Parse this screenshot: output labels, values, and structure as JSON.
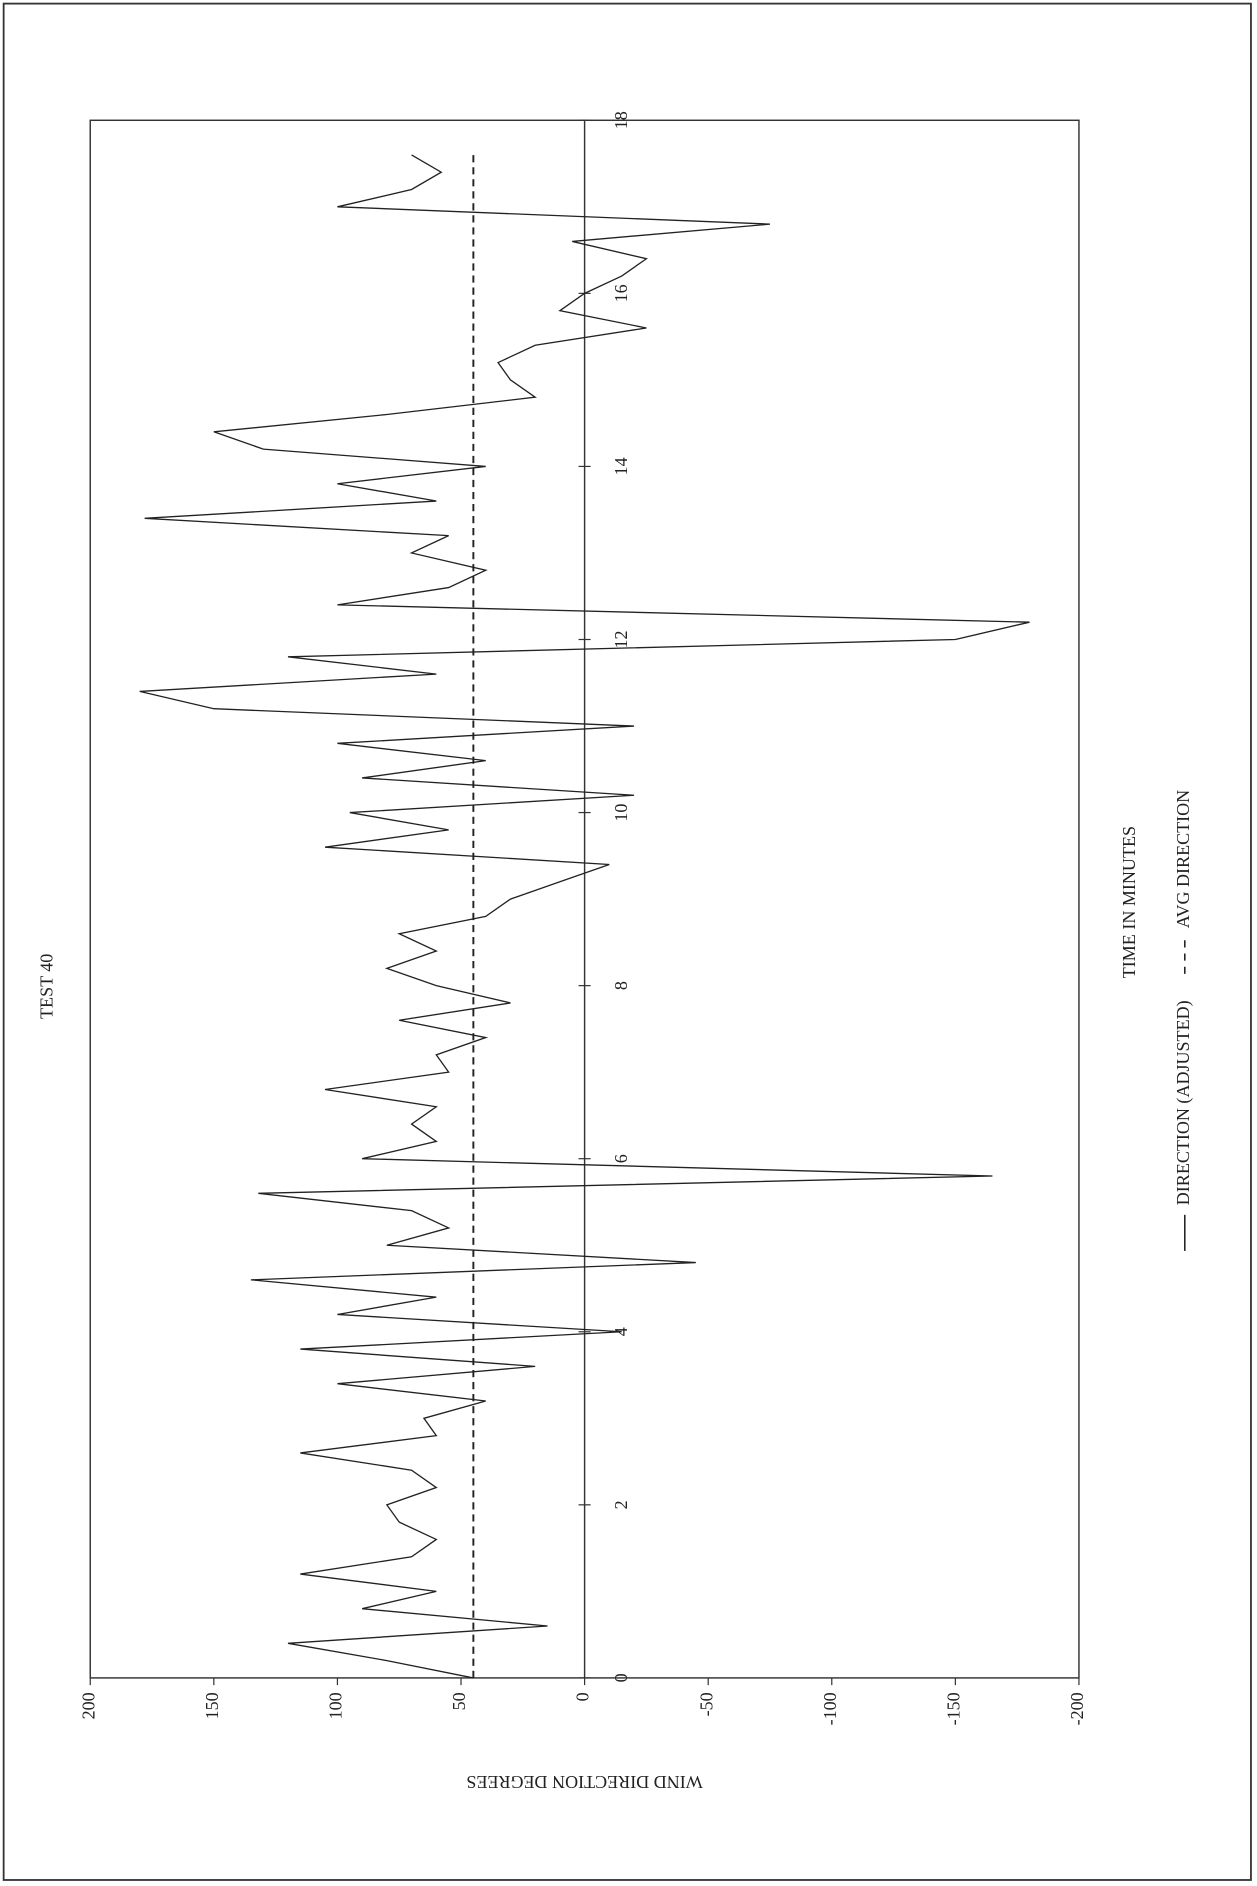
{
  "chart_data": {
    "type": "line",
    "title": "TEST 40",
    "xlabel": "TIME IN MINUTES",
    "ylabel": "WIND DIRECTION DEGREES",
    "xlim": [
      0,
      18
    ],
    "ylim": [
      -200,
      200
    ],
    "xticks": [
      0,
      2,
      4,
      6,
      8,
      10,
      12,
      14,
      16,
      18
    ],
    "yticks": [
      200,
      150,
      100,
      50,
      0,
      -50,
      -100,
      -150,
      -200
    ],
    "series": [
      {
        "name": "DIRECTION (ADJUSTED)",
        "color": "#222222",
        "style": "solid",
        "x": [
          0,
          0.2,
          0.4,
          0.6,
          0.8,
          1.0,
          1.2,
          1.4,
          1.6,
          1.8,
          2.0,
          2.2,
          2.4,
          2.6,
          2.8,
          3.0,
          3.2,
          3.4,
          3.6,
          3.8,
          4.0,
          4.2,
          4.4,
          4.6,
          4.8,
          5.0,
          5.2,
          5.4,
          5.6,
          5.8,
          6.0,
          6.2,
          6.4,
          6.6,
          6.8,
          7.0,
          7.2,
          7.4,
          7.6,
          7.8,
          8.0,
          8.2,
          8.4,
          8.6,
          8.8,
          9.0,
          9.2,
          9.4,
          9.6,
          9.8,
          10.0,
          10.2,
          10.4,
          10.6,
          10.8,
          11.0,
          11.2,
          11.4,
          11.6,
          11.8,
          12.0,
          12.2,
          12.4,
          12.6,
          12.8,
          13.0,
          13.2,
          13.4,
          13.6,
          13.8,
          14.0,
          14.2,
          14.4,
          14.6,
          14.8,
          15.0,
          15.2,
          15.4,
          15.6,
          15.8,
          16.0,
          16.2,
          16.4,
          16.6,
          16.8,
          17.0,
          17.2,
          17.4,
          17.6
        ],
        "values": [
          45,
          80,
          120,
          15,
          90,
          60,
          115,
          70,
          60,
          75,
          80,
          60,
          70,
          115,
          60,
          65,
          40,
          100,
          20,
          115,
          -15,
          100,
          60,
          135,
          -45,
          80,
          55,
          70,
          132,
          -165,
          90,
          60,
          70,
          60,
          105,
          55,
          60,
          40,
          75,
          30,
          60,
          80,
          60,
          75,
          40,
          30,
          10,
          -10,
          105,
          55,
          95,
          -20,
          90,
          40,
          100,
          -20,
          150,
          180,
          60,
          120,
          -150,
          -180,
          100,
          55,
          40,
          70,
          55,
          178,
          60,
          100,
          40,
          130,
          150,
          80,
          20,
          30,
          35,
          20,
          -25,
          10,
          0,
          -15,
          -25,
          5,
          -75,
          100,
          70,
          58,
          70
        ]
      },
      {
        "name": "AVG DIRECTION",
        "color": "#222222",
        "style": "dashed",
        "x": [
          0,
          17.6
        ],
        "values": [
          45,
          45
        ]
      }
    ]
  }
}
